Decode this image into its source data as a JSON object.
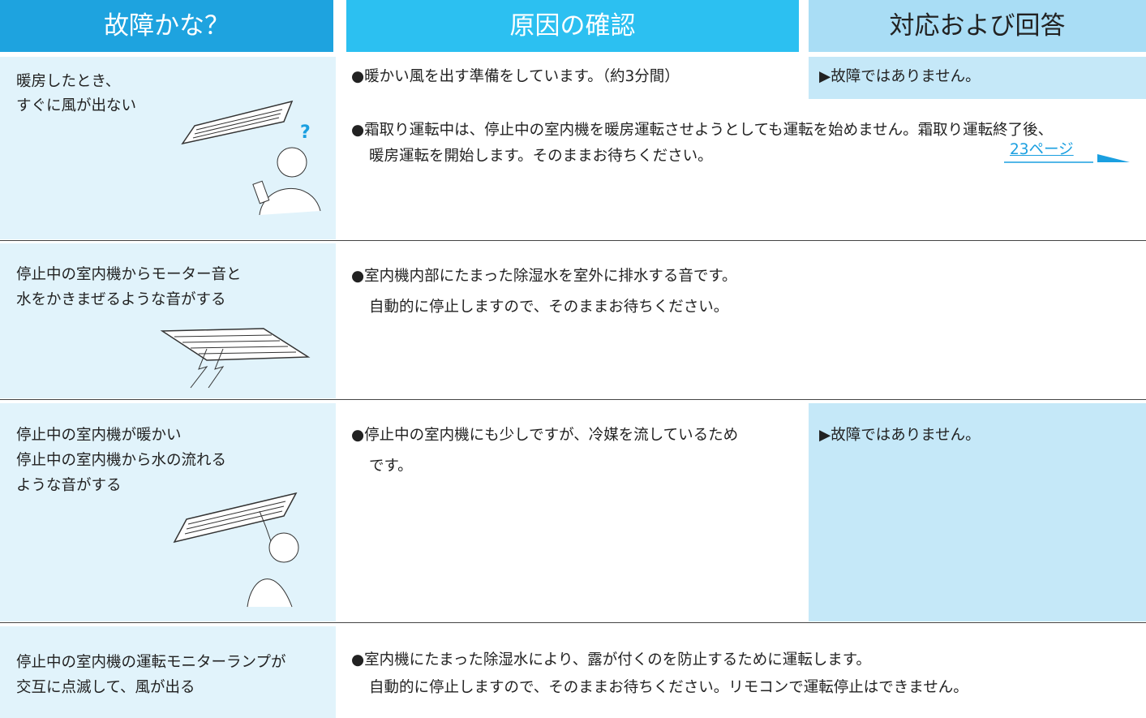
{
  "header": {
    "columns": [
      "故障かな？",
      "原因の確認",
      "対応および回答"
    ]
  },
  "rows": [
    {
      "symptom": [
        "暖房したとき、",
        "すぐに風が出ない"
      ],
      "causes": [
        {
          "lines": [
            "●暖かい風を出す準備をしています。（約3分間）"
          ],
          "answer": "▶故障ではありません。"
        },
        {
          "lines": [
            "●霜取り運転中は、停止中の室内機を暖房運転させようとしても運転を始めません。霜取り運転終了後、",
            "暖房運転を開始します。そのままお待ちください。"
          ],
          "link": "23ページ"
        }
      ]
    },
    {
      "symptom": [
        "停止中の室内機からモーター音と",
        "水をかきまぜるような音がする"
      ],
      "causes": [
        {
          "lines": [
            "●室内機内部にたまった除湿水を室外に排水する音です。",
            "自動的に停止しますので、そのままお待ちください。"
          ]
        }
      ]
    },
    {
      "symptom": [
        "停止中の室内機が暖かい",
        "停止中の室内機から水の流れる",
        "ような音がする"
      ],
      "causes": [
        {
          "lines": [
            "●停止中の室内機にも少しですが、冷媒を流しているため",
            "です。"
          ],
          "answer": "▶故障ではありません。"
        }
      ]
    },
    {
      "symptom": [
        "停止中の室内機の運転モニターランプが",
        "交互に点滅して、風が出る"
      ],
      "causes": [
        {
          "lines": [
            "●室内機にたまった除湿水により、露が付くのを防止するために運転します。",
            "自動的に停止しますので、そのままお待ちください。リモコンで運転停止はできません。"
          ]
        }
      ]
    }
  ]
}
